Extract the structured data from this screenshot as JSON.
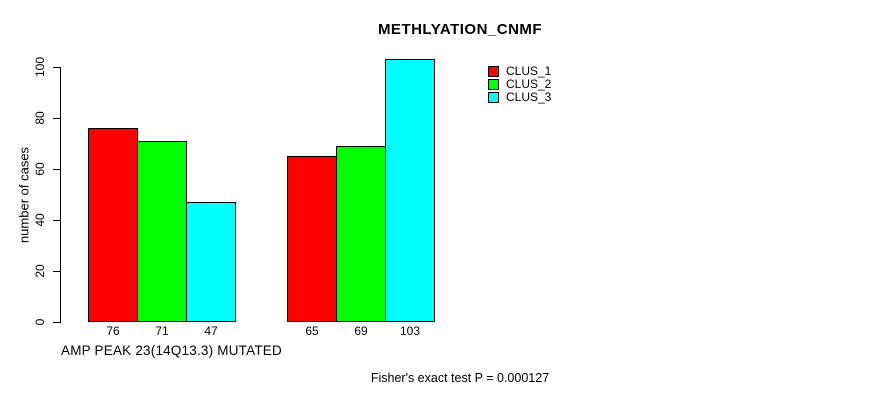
{
  "chart_data": {
    "type": "bar",
    "title": "METHLYATION_CNMF",
    "ylabel": "number of cases",
    "xlabel": "AMP PEAK 23(14Q13.3) MUTATED",
    "annotation": "Fisher's exact test P = 0.000127",
    "ylim": [
      0,
      100
    ],
    "yticks": [
      0,
      20,
      40,
      60,
      80,
      100
    ],
    "grid": false,
    "legend_position": "top-right",
    "categories": [
      "AMP PEAK 23(14Q13.3) MUTATED",
      ""
    ],
    "series": [
      {
        "name": "CLUS_1",
        "color": "#ff0000",
        "values": [
          76,
          65
        ]
      },
      {
        "name": "CLUS_2",
        "color": "#00ff00",
        "values": [
          71,
          69
        ]
      },
      {
        "name": "CLUS_3",
        "color": "#00ffff",
        "values": [
          47,
          103
        ]
      }
    ],
    "bar_value_labels": [
      [
        76,
        71,
        47
      ],
      [
        65,
        69,
        103
      ]
    ],
    "colors": {
      "background": "#ffffff",
      "bar_border": "#000000",
      "axis": "#000000",
      "text": "#000000"
    }
  }
}
